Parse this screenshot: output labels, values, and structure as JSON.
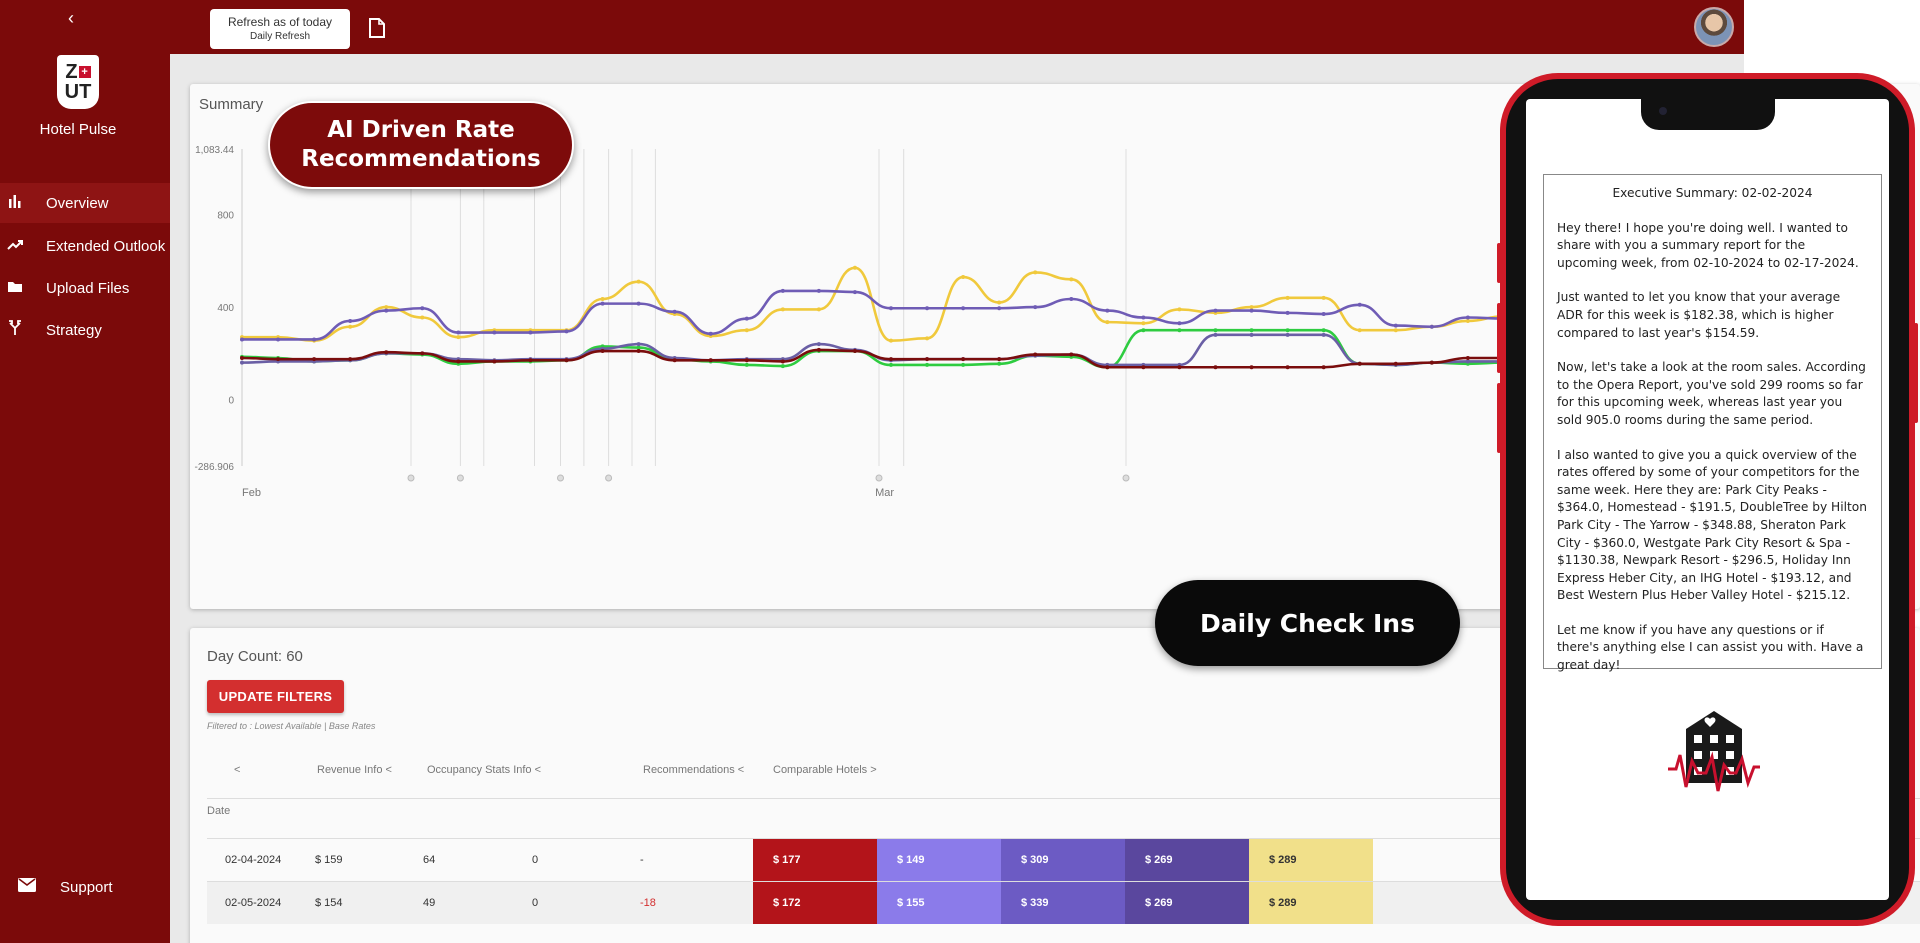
{
  "sidebar": {
    "collapse_icon": "chevron-left-icon",
    "logo_text_top": "Z",
    "logo_text_bottom": "UT",
    "brand": "Hotel Pulse",
    "items": [
      {
        "label": "Overview",
        "icon": "bar-chart-icon",
        "active": true
      },
      {
        "label": "Extended Outlook",
        "icon": "trend-icon",
        "active": false
      },
      {
        "label": "Upload Files",
        "icon": "folder-icon",
        "active": false
      },
      {
        "label": "Strategy",
        "icon": "fork-icon",
        "active": false
      }
    ],
    "support_label": "Support"
  },
  "topbar": {
    "refresh_line1": "Refresh as of today",
    "refresh_line2": "Daily Refresh"
  },
  "summary": {
    "title": "Summary"
  },
  "chart_data": {
    "type": "line",
    "title": "Summary",
    "y_ticks": [
      "1,083.44",
      "800",
      "400",
      "0",
      "-286.906"
    ],
    "ylim": [
      -286.906,
      1083.44
    ],
    "x_ticks": [
      "Feb",
      "Mar"
    ],
    "grid": false,
    "series": [
      {
        "color": "#f0c93c",
        "values": [
          270,
          270,
          255,
          315,
          400,
          355,
          270,
          300,
          300,
          300,
          435,
          510,
          370,
          275,
          300,
          390,
          390,
          570,
          255,
          265,
          530,
          420,
          550,
          520,
          335,
          330,
          390,
          375,
          400,
          440,
          440,
          300,
          300,
          315,
          340,
          360,
          300
        ]
      },
      {
        "color": "#6f5cb5",
        "values": [
          260,
          260,
          260,
          340,
          385,
          395,
          290,
          290,
          290,
          295,
          415,
          415,
          380,
          285,
          350,
          470,
          470,
          465,
          395,
          395,
          395,
          395,
          400,
          435,
          385,
          355,
          330,
          385,
          385,
          375,
          370,
          410,
          320,
          315,
          355,
          350,
          300
        ]
      },
      {
        "color": "#2ecc40",
        "values": [
          185,
          180,
          165,
          170,
          200,
          195,
          155,
          165,
          165,
          170,
          230,
          225,
          175,
          165,
          150,
          145,
          210,
          210,
          150,
          150,
          150,
          155,
          190,
          185,
          140,
          300,
          300,
          300,
          300,
          300,
          300,
          155,
          150,
          160,
          155,
          160,
          145
        ]
      },
      {
        "color": "#6a5fa5",
        "values": [
          160,
          165,
          165,
          170,
          200,
          200,
          175,
          170,
          175,
          175,
          220,
          240,
          180,
          170,
          175,
          175,
          240,
          215,
          170,
          175,
          175,
          175,
          190,
          195,
          150,
          150,
          150,
          280,
          280,
          280,
          280,
          155,
          150,
          160,
          165,
          165,
          160
        ]
      },
      {
        "color": "#7a0d0d",
        "values": [
          180,
          175,
          175,
          175,
          205,
          200,
          165,
          165,
          170,
          170,
          210,
          210,
          170,
          170,
          170,
          165,
          215,
          210,
          175,
          175,
          175,
          175,
          195,
          195,
          140,
          140,
          140,
          140,
          140,
          140,
          140,
          155,
          155,
          160,
          180,
          180,
          155
        ]
      }
    ]
  },
  "table": {
    "day_count": "Day Count: 60",
    "update_button": "UPDATE FILTERS",
    "filtered_note": "Filtered to : Lowest Available | Base Rates",
    "group_headers": {
      "collapse": "<",
      "revenue": "Revenue Info <",
      "occupancy": "Occupancy Stats Info <",
      "recommendations": "Recommendations <",
      "comparable": "Comparable Hotels >"
    },
    "date_header": "Date",
    "rows": [
      {
        "date": "02-04-2024",
        "revenue": "$ 159",
        "occupancy": "64",
        "zero": "0",
        "rec": "-",
        "comps": [
          "$ 177",
          "$ 149",
          "$ 309",
          "$ 269",
          "$ 289"
        ]
      },
      {
        "date": "02-05-2024",
        "revenue": "$ 154",
        "occupancy": "49",
        "zero": "0",
        "rec": "-18",
        "comps": [
          "$ 172",
          "$ 155",
          "$ 339",
          "$ 269",
          "$ 289"
        ]
      }
    ],
    "comp_colors": [
      "#b3141a",
      "#8b7bea",
      "#6c5bc4",
      "#5a479e",
      "#f1e08a"
    ]
  },
  "callouts": {
    "ai_line1": "AI Driven Rate",
    "ai_line2": "Recommendations",
    "checkins": "Daily Check Ins"
  },
  "phone": {
    "summary_title": "Executive Summary: 02-02-2024",
    "paragraphs": [
      "Hey there! I hope you're doing well. I wanted to share with you a summary report for the upcoming week, from 02-10-2024 to 02-17-2024.",
      "Just wanted to let you know that your average ADR for this week is $182.38, which is higher compared to last year's $154.59.",
      "Now, let's take a look at the room sales. According to the Opera Report, you've sold 299 rooms so far for this upcoming week, whereas last year you sold 905.0 rooms during the same period.",
      "I also wanted to give you a quick overview of the rates offered by some of your competitors for the same week. Here they are: Park City Peaks - $364.0, Homestead - $191.5, DoubleTree by Hilton Park City - The Yarrow - $348.88, Sheraton Park City - $360.0, Westgate Park City Resort & Spa - $1130.38, Newpark Resort - $296.5, Holiday Inn Express Heber City, an IHG Hotel - $193.12, and Best Western Plus Heber Valley Hotel - $215.12.",
      "Let me know if you have any questions or if there's anything else I can assist you with. Have a great day!"
    ],
    "logo_icon": "hotel-heartbeat-icon"
  }
}
